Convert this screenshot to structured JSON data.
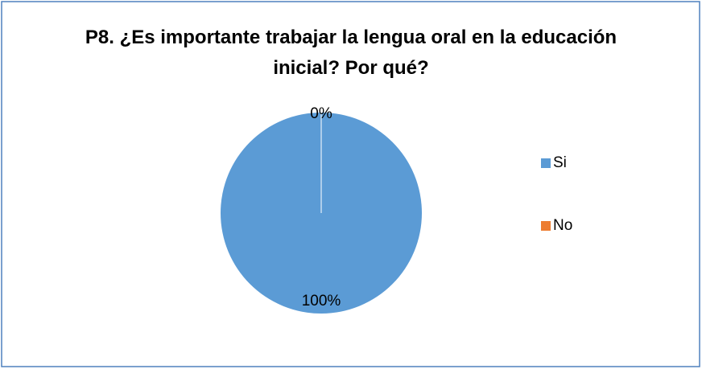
{
  "chart_data": {
    "type": "pie",
    "title": "P8. ¿Es importante trabajar la lengua oral en la educación inicial? Por qué?",
    "categories": [
      "Si",
      "No"
    ],
    "values": [
      100,
      0
    ],
    "value_labels": [
      "100%",
      "0%"
    ],
    "colors": [
      "#5b9bd5",
      "#ed7d31"
    ],
    "legend": "right"
  }
}
